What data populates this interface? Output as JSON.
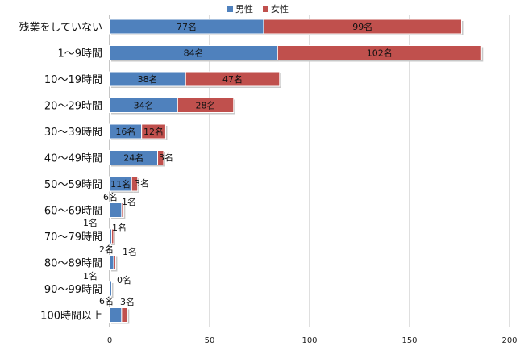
{
  "chart_data": {
    "type": "bar",
    "orientation": "horizontal",
    "stacked": true,
    "title": "",
    "xlabel": "",
    "ylabel": "",
    "xlim": [
      0,
      200
    ],
    "x_ticks": [
      0,
      50,
      100,
      150,
      200
    ],
    "grid": true,
    "legend_position": "top-center",
    "categories": [
      "残業をしていない",
      "1～9時間",
      "10～19時間",
      "20～29時間",
      "30～39時間",
      "40～49時間",
      "50～59時間",
      "60～69時間",
      "70～79時間",
      "80～89時間",
      "90～99時間",
      "100時間以上"
    ],
    "series": [
      {
        "name": "男性",
        "color": "#4f81bd",
        "values": [
          77,
          84,
          38,
          34,
          16,
          24,
          11,
          6,
          1,
          2,
          1,
          6
        ],
        "labels": [
          "77名",
          "84名",
          "38名",
          "34名",
          "16名",
          "24名",
          "11名",
          "6名",
          "1名",
          "2名",
          "1名",
          "6名"
        ]
      },
      {
        "name": "女性",
        "color": "#c0504d",
        "values": [
          99,
          102,
          47,
          28,
          12,
          3,
          3,
          1,
          1,
          1,
          0,
          3
        ],
        "labels": [
          "99名",
          "102名",
          "47名",
          "28名",
          "12名",
          "3名",
          "3名",
          "1名",
          "1名",
          "1名",
          "0名",
          "3名"
        ]
      }
    ]
  }
}
